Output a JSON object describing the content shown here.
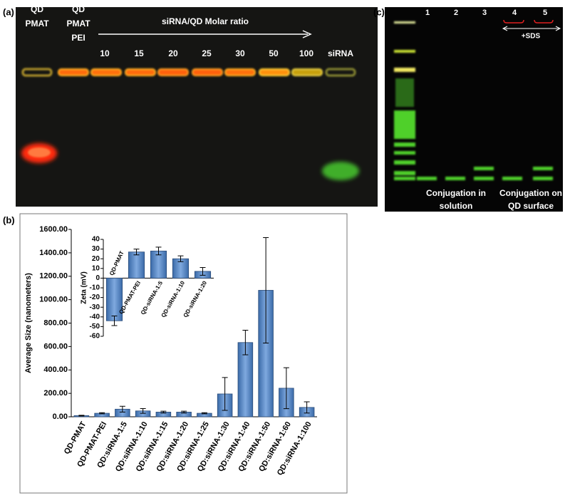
{
  "panel_a": {
    "label": "(a)",
    "lane_headers": [
      [
        "QD",
        "PMAT"
      ],
      [
        "QD",
        "PMAT",
        "PEI"
      ]
    ],
    "title": "siRNA/QD  Molar ratio",
    "lanes": [
      "10",
      "15",
      "20",
      "25",
      "30",
      "50",
      "100",
      "siRNA"
    ]
  },
  "panel_b": {
    "label": "(b)"
  },
  "panel_c": {
    "label": "(c)",
    "lanes": [
      "1",
      "2",
      "3",
      "4",
      "5"
    ],
    "sds": "+SDS",
    "groups": [
      [
        "Conjugation in",
        "solution"
      ],
      [
        "Conjugation on",
        "QD surface"
      ]
    ]
  },
  "chart_data": [
    {
      "type": "bar",
      "ylabel": "Average Size (nanometers)",
      "color": "#4f81bd",
      "categories": [
        "QD-PMAT",
        "QD-PMAT-PEI",
        "QD:siRNA-1:5",
        "QD:siRNA-1:10",
        "QD:siRNA-1:15",
        "QD:siRNA-1:20",
        "QD:siRNA-1:25",
        "QD:siRNA-1:30",
        "QD:siRNA-1:40",
        "QD:siRNA-1:50",
        "QD:siRNA-1:60",
        "QD:siRNA-1:100"
      ],
      "values": [
        10,
        30,
        65,
        50,
        40,
        40,
        30,
        195,
        634,
        1080,
        244,
        80
      ],
      "errors": [
        3,
        5,
        25,
        20,
        8,
        8,
        5,
        140,
        105,
        450,
        175,
        48
      ],
      "ylim": [
        0,
        1600
      ],
      "yticks": [
        {
          "value": 0,
          "label": "0.00"
        },
        {
          "value": 200,
          "label": "200.00"
        },
        {
          "value": 400,
          "label": "400.00"
        },
        {
          "value": 600,
          "label": "600.00"
        },
        {
          "value": 800,
          "label": "800.00"
        },
        {
          "value": 1000,
          "label": "1000.00"
        },
        {
          "value": 1200,
          "label": "1200.00"
        },
        {
          "value": 1400,
          "label": "1400.00"
        },
        {
          "value": 1600,
          "label": "1600.00"
        }
      ]
    },
    {
      "type": "bar",
      "ylabel": "Zeta (mV)",
      "color": "#4f81bd",
      "categories": [
        "QD-PMAT",
        "QD-PMAT-PEI",
        "QD-siRNA-1:5",
        "QD-siRNA-1:10",
        "QD-siRNA-1:20"
      ],
      "values": [
        -44,
        27,
        28,
        20,
        7
      ],
      "errors": [
        5,
        3,
        4,
        3,
        4
      ],
      "ylim": [
        -60,
        40
      ],
      "yticks": [
        -60,
        -50,
        -40,
        -30,
        -20,
        -10,
        0,
        10,
        20,
        30,
        40
      ]
    }
  ]
}
